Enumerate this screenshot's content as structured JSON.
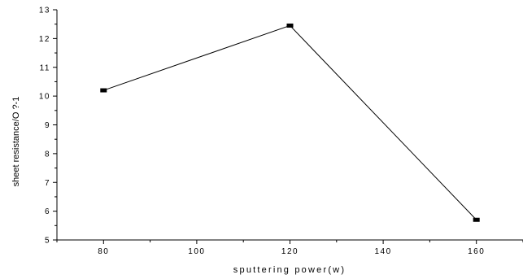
{
  "chart_data": {
    "type": "line",
    "title": "",
    "xlabel": "sputtering power(w)",
    "ylabel": "sheet resistance/O ?-1",
    "xlim": [
      70,
      170
    ],
    "ylim": [
      5,
      13
    ],
    "x_ticks": [
      80,
      100,
      120,
      140,
      160
    ],
    "y_ticks": [
      5,
      6,
      7,
      8,
      9,
      10,
      11,
      12,
      13
    ],
    "x_tick_labels": [
      "80",
      "100",
      "120",
      "140",
      "160"
    ],
    "y_tick_labels": [
      "5",
      "6",
      "7",
      "8",
      "9",
      "10",
      "11",
      "12",
      "13"
    ],
    "grid": false,
    "legend": "none",
    "series": [
      {
        "x": [
          80,
          120,
          160
        ],
        "y": [
          10.2,
          12.45,
          5.7
        ],
        "color": "#000000",
        "marker": "square"
      }
    ]
  }
}
